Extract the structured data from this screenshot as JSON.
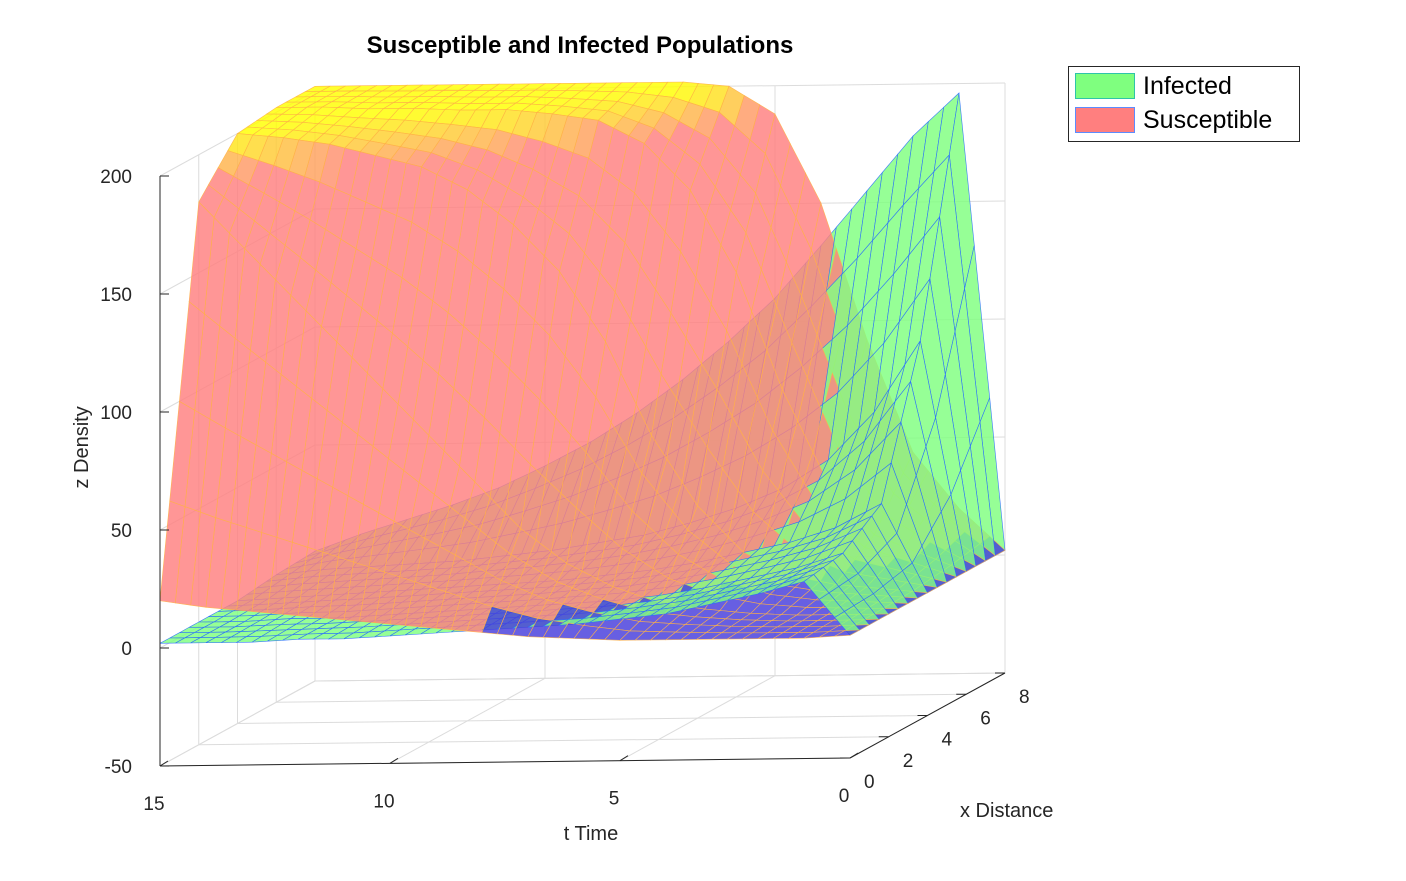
{
  "chart_data": {
    "type": "surface",
    "title": "Susceptible and Infected Populations",
    "xlabel": "t Time",
    "ylabel": "x Distance",
    "zlabel": "z Density",
    "t_range": [
      0,
      15
    ],
    "x_range": [
      0,
      8
    ],
    "z_range": [
      -50,
      200
    ],
    "t_ticks": [
      "0",
      "5",
      "10",
      "15"
    ],
    "x_ticks": [
      "0",
      "2",
      "4",
      "6",
      "8"
    ],
    "z_ticks": [
      "-50",
      "0",
      "50",
      "100",
      "150",
      "200"
    ],
    "grid": true,
    "legend_position": "top-right",
    "t": [
      0,
      1,
      2,
      3,
      4,
      5,
      6,
      7,
      8,
      9,
      10,
      11,
      12,
      13,
      14,
      15
    ],
    "x": [
      0,
      2,
      4,
      6,
      8
    ],
    "series": [
      {
        "name": "Infected",
        "color": "#7fff7f",
        "edge": "#2a6dff",
        "z": [
          [
            2,
            2,
            2,
            2,
            2
          ],
          [
            25,
            28,
            40,
            100,
            196
          ],
          [
            20,
            22,
            30,
            70,
            178
          ],
          [
            16,
            18,
            24,
            50,
            155
          ],
          [
            12,
            14,
            20,
            38,
            132
          ],
          [
            10,
            11,
            16,
            30,
            110
          ],
          [
            8,
            9,
            13,
            24,
            92
          ],
          [
            7,
            8,
            11,
            19,
            76
          ],
          [
            6,
            7,
            9,
            16,
            62
          ],
          [
            5,
            6,
            8,
            13,
            50
          ],
          [
            4,
            5,
            7,
            11,
            40
          ],
          [
            3,
            4,
            6,
            9,
            31
          ],
          [
            3,
            3,
            5,
            8,
            24
          ],
          [
            2,
            3,
            4,
            7,
            18
          ],
          [
            2,
            2,
            3,
            6,
            12
          ],
          [
            2,
            2,
            2,
            4,
            5
          ]
        ]
      },
      {
        "name": "Susceptible",
        "color": "#ff7f7f",
        "edge": "#ffb347",
        "z": [
          [
            2,
            2,
            2,
            2,
            2
          ],
          [
            1,
            2,
            4,
            10,
            20
          ],
          [
            1,
            2,
            6,
            18,
            44
          ],
          [
            1,
            3,
            10,
            40,
            92
          ],
          [
            1,
            5,
            20,
            80,
            150
          ],
          [
            1,
            8,
            40,
            130,
            188
          ],
          [
            2,
            15,
            70,
            165,
            200
          ],
          [
            3,
            25,
            110,
            185,
            202
          ],
          [
            5,
            40,
            140,
            195,
            202
          ],
          [
            7,
            60,
            160,
            198,
            202
          ],
          [
            9,
            80,
            175,
            200,
            202
          ],
          [
            11,
            100,
            185,
            200,
            202
          ],
          [
            13,
            120,
            190,
            201,
            202
          ],
          [
            15,
            140,
            195,
            201,
            202
          ],
          [
            17,
            160,
            198,
            202,
            202
          ],
          [
            20,
            180,
            200,
            202,
            202
          ]
        ]
      }
    ]
  },
  "legend": {
    "items": [
      {
        "label": "Infected",
        "color": "#7fff7f",
        "border": "#2ec4a9"
      },
      {
        "label": "Susceptible",
        "color": "#ff7f7f",
        "border": "#5b8cff"
      }
    ]
  }
}
